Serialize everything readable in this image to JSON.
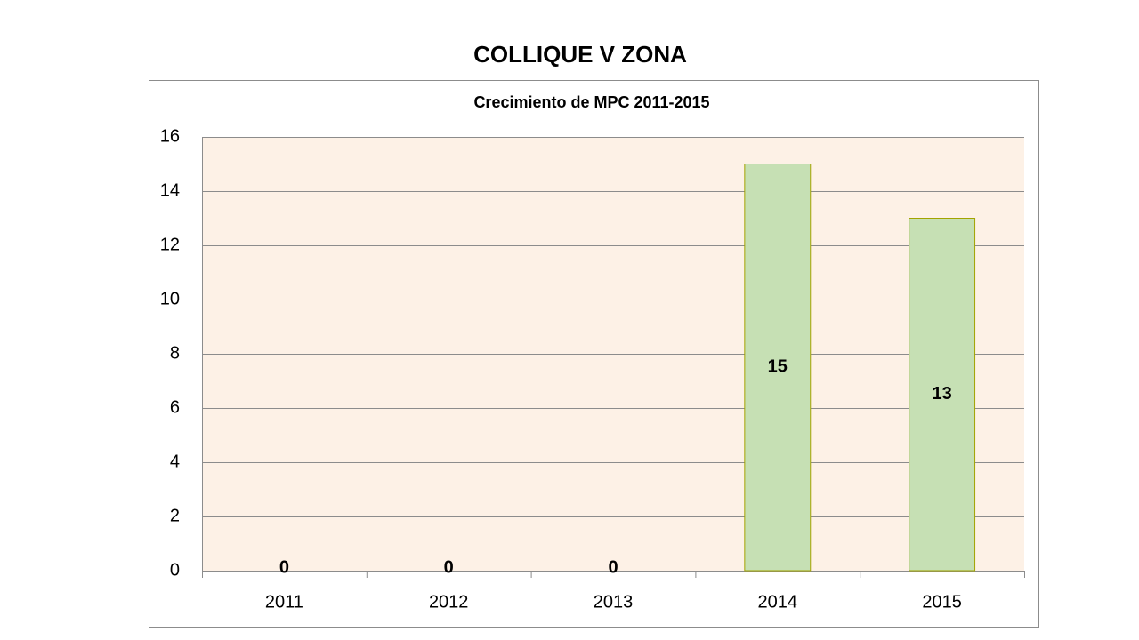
{
  "chart_data": {
    "type": "bar",
    "title": "COLLIQUE V ZONA",
    "subtitle": "Crecimiento de MPC 2011-2015",
    "categories": [
      "2011",
      "2012",
      "2013",
      "2014",
      "2015"
    ],
    "values": [
      0,
      0,
      0,
      15,
      13
    ],
    "color": "#c6e0b4",
    "edge_color": "#a3a300",
    "ylim": [
      0,
      16
    ],
    "yticks": [
      0,
      2,
      4,
      6,
      8,
      10,
      12,
      14,
      16
    ],
    "grid": true
  }
}
